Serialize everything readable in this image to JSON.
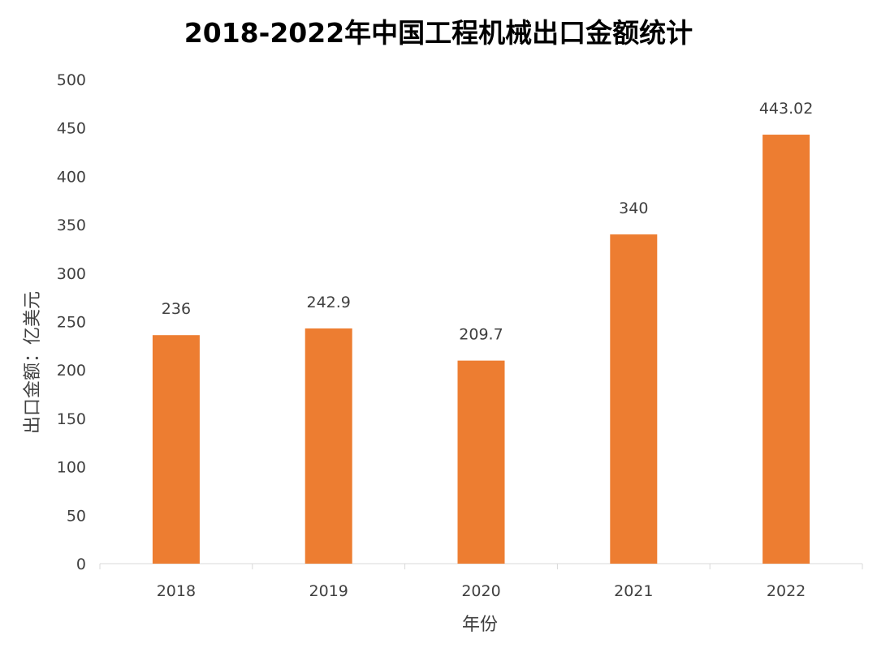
{
  "chart_data": {
    "type": "bar",
    "title": "2018-2022年中国工程机械出口金额统计",
    "xlabel": "年份",
    "ylabel": "出口金额：亿美元",
    "categories": [
      "2018",
      "2019",
      "2020",
      "2021",
      "2022"
    ],
    "values": [
      236,
      242.9,
      209.7,
      340,
      443.02
    ],
    "value_labels": [
      "236",
      "242.9",
      "209.7",
      "340",
      "443.02"
    ],
    "ylim": [
      0,
      500
    ],
    "yticks": [
      "0",
      "50",
      "100",
      "150",
      "200",
      "250",
      "300",
      "350",
      "400",
      "450",
      "500"
    ],
    "bar_color": "#ED7D31",
    "grid": false,
    "legend": "none"
  }
}
